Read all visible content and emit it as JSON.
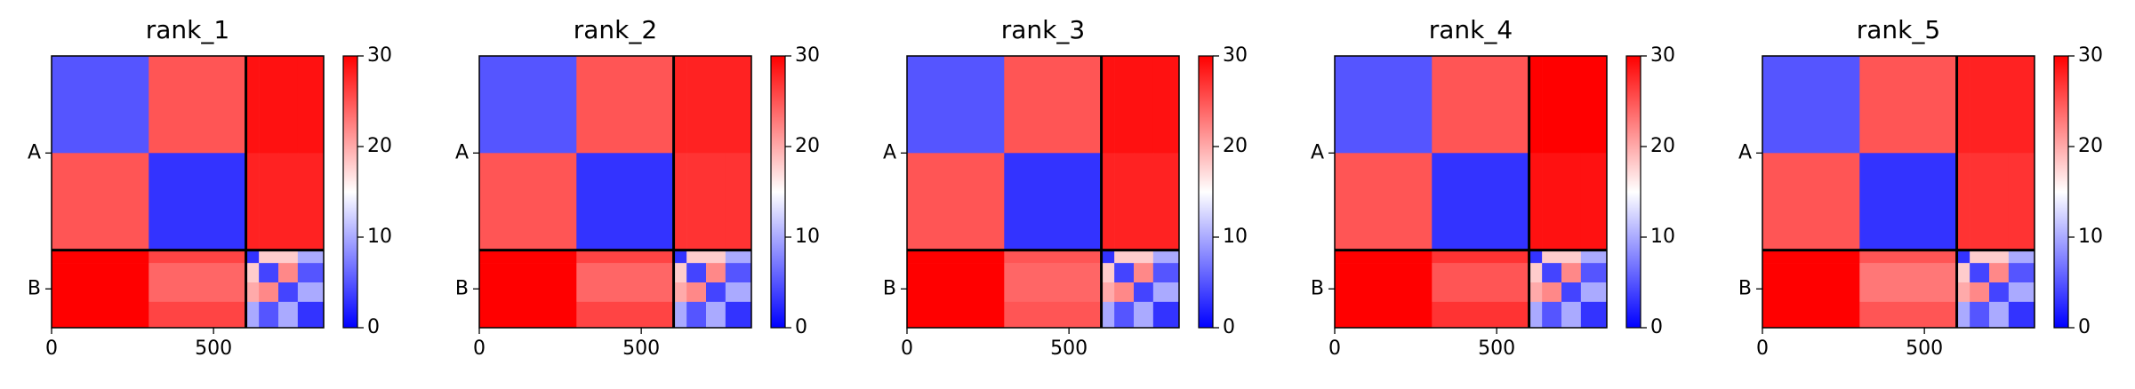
{
  "chart_data": [
    {
      "type": "heatmap",
      "title": "rank_1",
      "edges": [
        0,
        300,
        600,
        640,
        700,
        760,
        840
      ],
      "values": [
        [
          5,
          25,
          29,
          29,
          29,
          29
        ],
        [
          25,
          3,
          28,
          28,
          28,
          28
        ],
        [
          30,
          26,
          3,
          18,
          18,
          10
        ],
        [
          30,
          24,
          18,
          4,
          22,
          5
        ],
        [
          30,
          24,
          20,
          22,
          4,
          10
        ],
        [
          30,
          26,
          10,
          5,
          10,
          3
        ]
      ],
      "xlim": [
        0,
        840
      ],
      "ylim": [
        840,
        0
      ],
      "xticks": [
        0,
        500
      ],
      "yticks": [
        {
          "value": 300,
          "label": "A"
        },
        {
          "value": 720,
          "label": "B"
        }
      ],
      "chain_boundary": 600,
      "clim": [
        0,
        30
      ],
      "cticks": [
        0,
        10,
        20,
        30
      ],
      "cmap_colors": [
        "#0000ff",
        "#ffffff",
        "#ff0000"
      ]
    },
    {
      "type": "heatmap",
      "title": "rank_2",
      "edges": [
        0,
        300,
        600,
        640,
        700,
        760,
        840
      ],
      "values": [
        [
          5,
          25,
          28,
          28,
          28,
          28
        ],
        [
          25,
          3,
          27,
          27,
          27,
          27
        ],
        [
          30,
          26,
          3,
          18,
          18,
          10
        ],
        [
          30,
          24,
          18,
          4,
          22,
          5
        ],
        [
          30,
          24,
          20,
          22,
          4,
          10
        ],
        [
          30,
          26,
          10,
          5,
          10,
          3
        ]
      ],
      "xlim": [
        0,
        840
      ],
      "ylim": [
        840,
        0
      ],
      "xticks": [
        0,
        500
      ],
      "yticks": [
        {
          "value": 300,
          "label": "A"
        },
        {
          "value": 720,
          "label": "B"
        }
      ],
      "chain_boundary": 600,
      "clim": [
        0,
        30
      ],
      "cticks": [
        0,
        10,
        20,
        30
      ],
      "cmap_colors": [
        "#0000ff",
        "#ffffff",
        "#ff0000"
      ]
    },
    {
      "type": "heatmap",
      "title": "rank_3",
      "edges": [
        0,
        300,
        600,
        640,
        700,
        760,
        840
      ],
      "values": [
        [
          5,
          25,
          29,
          29,
          29,
          29
        ],
        [
          25,
          3,
          28,
          28,
          28,
          28
        ],
        [
          30,
          25,
          3,
          18,
          18,
          10
        ],
        [
          30,
          24,
          18,
          4,
          22,
          5
        ],
        [
          30,
          24,
          20,
          22,
          4,
          10
        ],
        [
          30,
          25,
          10,
          5,
          10,
          3
        ]
      ],
      "xlim": [
        0,
        840
      ],
      "ylim": [
        840,
        0
      ],
      "xticks": [
        0,
        500
      ],
      "yticks": [
        {
          "value": 300,
          "label": "A"
        },
        {
          "value": 720,
          "label": "B"
        }
      ],
      "chain_boundary": 600,
      "clim": [
        0,
        30
      ],
      "cticks": [
        0,
        10,
        20,
        30
      ],
      "cmap_colors": [
        "#0000ff",
        "#ffffff",
        "#ff0000"
      ]
    },
    {
      "type": "heatmap",
      "title": "rank_4",
      "edges": [
        0,
        300,
        600,
        640,
        700,
        760,
        840
      ],
      "values": [
        [
          5,
          25,
          30,
          30,
          30,
          30
        ],
        [
          25,
          3,
          29,
          29,
          29,
          29
        ],
        [
          30,
          27,
          3,
          18,
          18,
          10
        ],
        [
          30,
          25,
          18,
          4,
          22,
          5
        ],
        [
          30,
          25,
          20,
          22,
          4,
          10
        ],
        [
          30,
          27,
          10,
          5,
          10,
          3
        ]
      ],
      "xlim": [
        0,
        840
      ],
      "ylim": [
        840,
        0
      ],
      "xticks": [
        0,
        500
      ],
      "yticks": [
        {
          "value": 300,
          "label": "A"
        },
        {
          "value": 720,
          "label": "B"
        }
      ],
      "chain_boundary": 600,
      "clim": [
        0,
        30
      ],
      "cticks": [
        0,
        10,
        20,
        30
      ],
      "cmap_colors": [
        "#0000ff",
        "#ffffff",
        "#ff0000"
      ]
    },
    {
      "type": "heatmap",
      "title": "rank_5",
      "edges": [
        0,
        300,
        600,
        640,
        700,
        760,
        840
      ],
      "values": [
        [
          5,
          25,
          28,
          28,
          28,
          28
        ],
        [
          25,
          3,
          27,
          27,
          27,
          27
        ],
        [
          30,
          25,
          3,
          18,
          18,
          10
        ],
        [
          30,
          23,
          18,
          4,
          22,
          5
        ],
        [
          30,
          23,
          20,
          22,
          4,
          10
        ],
        [
          30,
          25,
          10,
          5,
          10,
          3
        ]
      ],
      "xlim": [
        0,
        840
      ],
      "ylim": [
        840,
        0
      ],
      "xticks": [
        0,
        500
      ],
      "yticks": [
        {
          "value": 300,
          "label": "A"
        },
        {
          "value": 720,
          "label": "B"
        }
      ],
      "chain_boundary": 600,
      "clim": [
        0,
        30
      ],
      "cticks": [
        0,
        10,
        20,
        30
      ],
      "cmap_colors": [
        "#0000ff",
        "#ffffff",
        "#ff0000"
      ]
    }
  ]
}
